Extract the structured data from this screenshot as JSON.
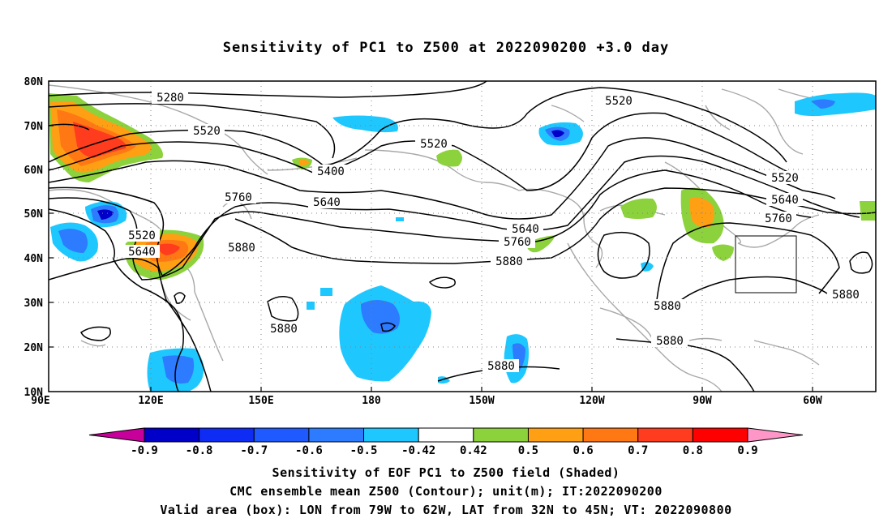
{
  "title": "Sensitivity of PC1 to Z500 at 2022090200 +3.0 day",
  "lat_labels": [
    "80N",
    "70N",
    "60N",
    "50N",
    "40N",
    "30N",
    "20N",
    "10N"
  ],
  "lon_labels": [
    "90E",
    "120E",
    "150E",
    "180",
    "150W",
    "120W",
    "90W",
    "60W"
  ],
  "contour_labels": [
    "5280",
    "5520",
    "5520",
    "5520",
    "5400",
    "5640",
    "5760",
    "5520",
    "5640",
    "5880",
    "5640",
    "5760",
    "5880",
    "5520",
    "5640",
    "5760",
    "5880",
    "5880",
    "5880",
    "5880",
    "5880"
  ],
  "colorbar": {
    "ticks": [
      "-0.9",
      "-0.8",
      "-0.7",
      "-0.6",
      "-0.5",
      "-0.42",
      "0.42",
      "0.5",
      "0.6",
      "0.7",
      "0.8",
      "0.9"
    ],
    "colors": [
      "#c8009b",
      "#0000c8",
      "#0f2cf5",
      "#1e5aff",
      "#2d7bff",
      "#1ec8ff",
      "#ffffff",
      "#8cd23c",
      "#ffa014",
      "#ff7814",
      "#ff3c1e",
      "#ff0000",
      "#ff96c8"
    ]
  },
  "captions": [
    "Sensitivity of EOF PC1 to Z500 field (Shaded)",
    "CMC ensemble mean Z500 (Contour); unit(m); IT:2022090200",
    "Valid area (box): LON from 79W to 62W, LAT from 32N to 45N; VT: 2022090800"
  ]
}
